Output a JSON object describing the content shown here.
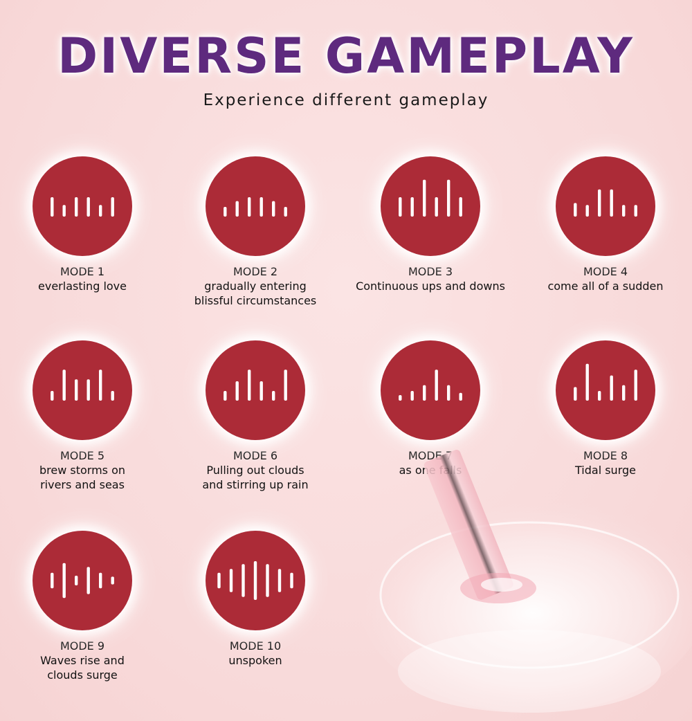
{
  "header": {
    "title": "DIVERSE GAMEPLAY",
    "subtitle": "Experience different gameplay"
  },
  "colors": {
    "title": "#5e2a7e",
    "circle": "#ac2b37",
    "bar": "#ffffff",
    "text": "#111111"
  },
  "modes": [
    {
      "label": "MODE 1",
      "desc": [
        "everlasting love"
      ],
      "icon": "waveform-icon",
      "bars": [
        0.5,
        0.3,
        0.5,
        0.5,
        0.3,
        0.5
      ]
    },
    {
      "label": "MODE 2",
      "desc": [
        "gradually entering",
        "blissful circumstances"
      ],
      "icon": "waveform-icon",
      "bars": [
        0.25,
        0.4,
        0.5,
        0.5,
        0.4,
        0.25
      ]
    },
    {
      "label": "MODE 3",
      "desc": [
        "Continuous ups and downs"
      ],
      "icon": "waveform-icon",
      "bars": [
        0.5,
        0.5,
        0.95,
        0.5,
        0.95,
        0.5
      ]
    },
    {
      "label": "MODE 4",
      "desc": [
        "come all of a sudden"
      ],
      "icon": "waveform-icon",
      "bars": [
        0.35,
        0.3,
        0.7,
        0.7,
        0.3,
        0.3
      ]
    },
    {
      "label": "MODE 5",
      "desc": [
        "brew storms on",
        "rivers and seas"
      ],
      "icon": "waveform-icon",
      "bars": [
        0.25,
        0.8,
        0.55,
        0.55,
        0.8,
        0.25
      ]
    },
    {
      "label": "MODE 6",
      "desc": [
        "Pulling out clouds",
        "and stirring up rain"
      ],
      "icon": "waveform-icon",
      "bars": [
        0.25,
        0.5,
        0.8,
        0.5,
        0.25,
        0.8
      ]
    },
    {
      "label": "MODE 7",
      "desc": [
        "as one falls"
      ],
      "icon": "waveform-icon",
      "bars": [
        0.12,
        0.25,
        0.4,
        0.8,
        0.4,
        0.2
      ]
    },
    {
      "label": "MODE 8",
      "desc": [
        "Tidal surge"
      ],
      "icon": "waveform-icon",
      "bars": [
        0.35,
        0.95,
        0.25,
        0.65,
        0.4,
        0.8
      ]
    },
    {
      "label": "MODE 9",
      "desc": [
        "Waves rise and",
        "clouds surge"
      ],
      "icon": "waveform-icon",
      "bars": [
        0.4,
        0.9,
        0.25,
        0.7,
        0.4,
        0.2
      ]
    },
    {
      "label": "MODE 10",
      "desc": [
        "unspoken"
      ],
      "icon": "waveform-icon",
      "bars": [
        0.4,
        0.6,
        0.85,
        1.0,
        0.85,
        0.6,
        0.4
      ]
    }
  ]
}
